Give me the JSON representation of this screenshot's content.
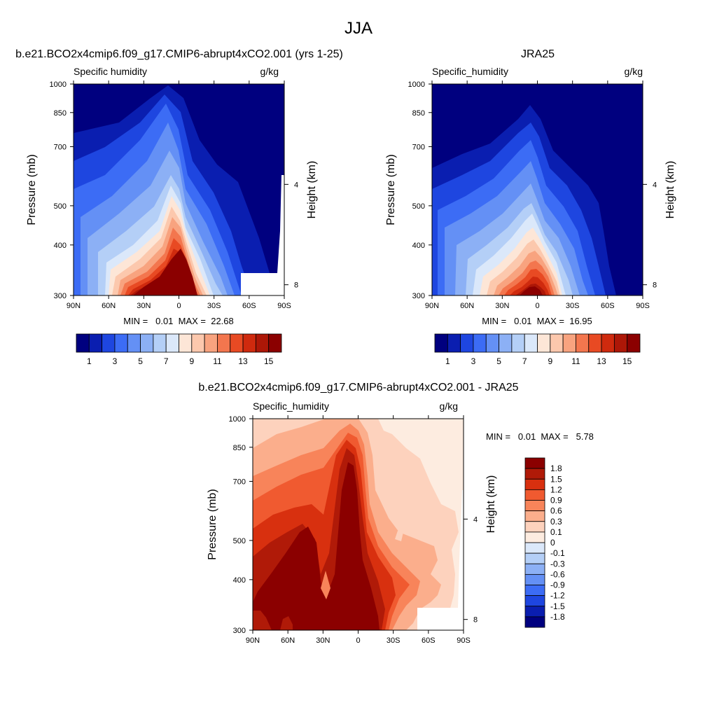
{
  "figure": {
    "title": "JJA"
  },
  "chart_data": [
    {
      "type": "heatmap",
      "title": "b.e21.BCO2x4cmip6.f09_g17.CMIP6-abrupt4xCO2.001 (yrs 1-25)",
      "left_label": "Specific humidity",
      "units": "g/kg",
      "ylabel": "Pressure (mb)",
      "ylabel_right": "Height (km)",
      "x_ticks": [
        "90N",
        "60N",
        "30N",
        "0",
        "30S",
        "60S",
        "90S"
      ],
      "y_ticks": [
        "300",
        "400",
        "500",
        "700",
        "850",
        "1000"
      ],
      "y_ticks_right": [
        "8",
        "4"
      ],
      "stats": "MIN =   0.01  MAX =  22.68",
      "colorbar": {
        "labels": [
          "1",
          "3",
          "5",
          "7",
          "9",
          "11",
          "13",
          "15"
        ],
        "colors": [
          "#00007f",
          "#0a1eb0",
          "#1e46e0",
          "#3c6cf5",
          "#6490f5",
          "#8cb0f5",
          "#b4cff7",
          "#dbe8fa",
          "#fde6d7",
          "#fcc8ad",
          "#f8a37f",
          "#f3764e",
          "#e84a23",
          "#cf2a0e",
          "#ad1707",
          "#8b0000"
        ]
      },
      "xlim": [
        90,
        -90
      ],
      "ylim": [
        1000,
        300
      ]
    },
    {
      "type": "heatmap",
      "title": "JRA25",
      "left_label": "Specific_humidity",
      "units": "g/kg",
      "ylabel": "Pressure (mb)",
      "ylabel_right": "Height (km)",
      "x_ticks": [
        "90N",
        "60N",
        "30N",
        "0",
        "30S",
        "60S",
        "90S"
      ],
      "y_ticks": [
        "300",
        "400",
        "500",
        "700",
        "850",
        "1000"
      ],
      "y_ticks_right": [
        "8",
        "4"
      ],
      "stats": "MIN =   0.01  MAX =  16.95",
      "colorbar": {
        "labels": [
          "1",
          "3",
          "5",
          "7",
          "9",
          "11",
          "13",
          "15"
        ],
        "colors": [
          "#00007f",
          "#0a1eb0",
          "#1e46e0",
          "#3c6cf5",
          "#6490f5",
          "#8cb0f5",
          "#b4cff7",
          "#dbe8fa",
          "#fde6d7",
          "#fcc8ad",
          "#f8a37f",
          "#f3764e",
          "#e84a23",
          "#cf2a0e",
          "#ad1707",
          "#8b0000"
        ]
      },
      "xlim": [
        90,
        -90
      ],
      "ylim": [
        1000,
        300
      ]
    },
    {
      "type": "heatmap",
      "title": "b.e21.BCO2x4cmip6.f09_g17.CMIP6-abrupt4xCO2.001 - JRA25",
      "left_label": "Specific_humidity",
      "units": "g/kg",
      "ylabel": "Pressure (mb)",
      "ylabel_right": "Height (km)",
      "x_ticks": [
        "90N",
        "60N",
        "30N",
        "0",
        "30S",
        "60S",
        "90S"
      ],
      "y_ticks": [
        "300",
        "400",
        "500",
        "700",
        "850",
        "1000"
      ],
      "y_ticks_right": [
        "8",
        "4"
      ],
      "stats": "MIN =   0.01  MAX =   5.78",
      "colorbar": {
        "labels": [
          "1.8",
          "1.5",
          "1.2",
          "0.9",
          "0.6",
          "0.3",
          "0.1",
          "0",
          "-0.1",
          "-0.3",
          "-0.6",
          "-0.9",
          "-1.2",
          "-1.5",
          "-1.8"
        ],
        "colors": [
          "#8b0000",
          "#b01a08",
          "#d8300f",
          "#f05a30",
          "#f8845a",
          "#fbae8c",
          "#fdd2bd",
          "#fdece0",
          "#dbe8fa",
          "#b4cff7",
          "#8cb0f5",
          "#6490f5",
          "#3c6cf5",
          "#1e46e0",
          "#0a1eb0",
          "#00007f"
        ]
      },
      "xlim": [
        90,
        -90
      ],
      "ylim": [
        1000,
        300
      ]
    }
  ]
}
